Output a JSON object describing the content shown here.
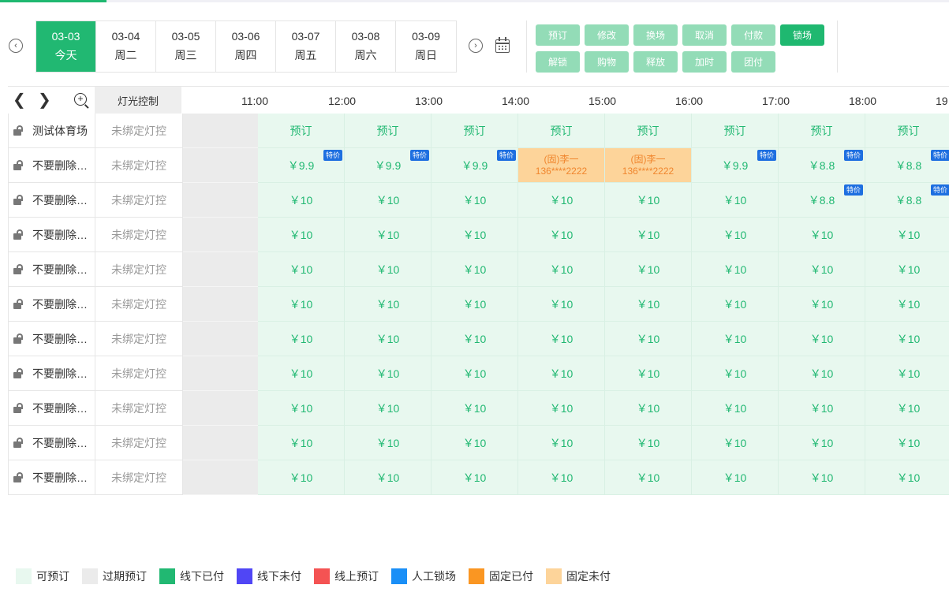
{
  "colors": {
    "primary": "#1fb870",
    "primary_light": "#93dcb7",
    "available": "#e8f8ef",
    "expired": "#ebebeb",
    "fixed_unpaid": "#fdd49a",
    "badge": "#1e6fe0"
  },
  "dates": [
    {
      "date": "03-03",
      "day": "今天",
      "active": true
    },
    {
      "date": "03-04",
      "day": "周二"
    },
    {
      "date": "03-05",
      "day": "周三"
    },
    {
      "date": "03-06",
      "day": "周四"
    },
    {
      "date": "03-07",
      "day": "周五"
    },
    {
      "date": "03-08",
      "day": "周六"
    },
    {
      "date": "03-09",
      "day": "周日"
    }
  ],
  "actions_row1": [
    "预订",
    "修改",
    "换场",
    "取消",
    "付款",
    "锁场"
  ],
  "actions_row2": [
    "解锁",
    "购物",
    "释放",
    "加时",
    "团付"
  ],
  "header": {
    "light_control": "灯光控制",
    "times": [
      "11:00",
      "12:00",
      "13:00",
      "14:00",
      "15:00",
      "16:00",
      "17:00",
      "18:00",
      "19"
    ]
  },
  "rows": [
    {
      "name": "测试体育场",
      "light": "未绑定灯控",
      "slots": [
        {
          "t": "预订"
        },
        {
          "t": "预订"
        },
        {
          "t": "预订"
        },
        {
          "t": "预订"
        },
        {
          "t": "预订"
        },
        {
          "t": "预订"
        },
        {
          "t": "预订"
        },
        {
          "t": "预订"
        }
      ]
    },
    {
      "name": "不要删除…",
      "light": "未绑定灯控",
      "slots": [
        {
          "t": "￥9.9",
          "b": "特价"
        },
        {
          "t": "￥9.9",
          "b": "特价"
        },
        {
          "t": "￥9.9",
          "b": "特价"
        },
        {
          "t": "(固)李一",
          "t2": "136****2222",
          "s": "fixed"
        },
        {
          "t": "(固)李一",
          "t2": "136****2222",
          "s": "fixed"
        },
        {
          "t": "￥9.9",
          "b": "特价"
        },
        {
          "t": "￥8.8",
          "b": "特价"
        },
        {
          "t": "￥8.8",
          "b": "特价"
        }
      ]
    },
    {
      "name": "不要删除…",
      "light": "未绑定灯控",
      "slots": [
        {
          "t": "￥10"
        },
        {
          "t": "￥10"
        },
        {
          "t": "￥10"
        },
        {
          "t": "￥10"
        },
        {
          "t": "￥10"
        },
        {
          "t": "￥10"
        },
        {
          "t": "￥8.8",
          "b": "特价"
        },
        {
          "t": "￥8.8",
          "b": "特价"
        }
      ]
    },
    {
      "name": "不要删除…",
      "light": "未绑定灯控",
      "slots": [
        {
          "t": "￥10"
        },
        {
          "t": "￥10"
        },
        {
          "t": "￥10"
        },
        {
          "t": "￥10"
        },
        {
          "t": "￥10"
        },
        {
          "t": "￥10"
        },
        {
          "t": "￥10"
        },
        {
          "t": "￥10"
        }
      ]
    },
    {
      "name": "不要删除…",
      "light": "未绑定灯控",
      "slots": [
        {
          "t": "￥10"
        },
        {
          "t": "￥10"
        },
        {
          "t": "￥10"
        },
        {
          "t": "￥10"
        },
        {
          "t": "￥10"
        },
        {
          "t": "￥10"
        },
        {
          "t": "￥10"
        },
        {
          "t": "￥10"
        }
      ]
    },
    {
      "name": "不要删除…",
      "light": "未绑定灯控",
      "slots": [
        {
          "t": "￥10"
        },
        {
          "t": "￥10"
        },
        {
          "t": "￥10"
        },
        {
          "t": "￥10"
        },
        {
          "t": "￥10"
        },
        {
          "t": "￥10"
        },
        {
          "t": "￥10"
        },
        {
          "t": "￥10"
        }
      ]
    },
    {
      "name": "不要删除…",
      "light": "未绑定灯控",
      "slots": [
        {
          "t": "￥10"
        },
        {
          "t": "￥10"
        },
        {
          "t": "￥10"
        },
        {
          "t": "￥10"
        },
        {
          "t": "￥10"
        },
        {
          "t": "￥10"
        },
        {
          "t": "￥10"
        },
        {
          "t": "￥10"
        }
      ]
    },
    {
      "name": "不要删除…",
      "light": "未绑定灯控",
      "slots": [
        {
          "t": "￥10"
        },
        {
          "t": "￥10"
        },
        {
          "t": "￥10"
        },
        {
          "t": "￥10"
        },
        {
          "t": "￥10"
        },
        {
          "t": "￥10"
        },
        {
          "t": "￥10"
        },
        {
          "t": "￥10"
        }
      ]
    },
    {
      "name": "不要删除…",
      "light": "未绑定灯控",
      "slots": [
        {
          "t": "￥10"
        },
        {
          "t": "￥10"
        },
        {
          "t": "￥10"
        },
        {
          "t": "￥10"
        },
        {
          "t": "￥10"
        },
        {
          "t": "￥10"
        },
        {
          "t": "￥10"
        },
        {
          "t": "￥10"
        }
      ]
    },
    {
      "name": "不要删除…",
      "light": "未绑定灯控",
      "slots": [
        {
          "t": "￥10"
        },
        {
          "t": "￥10"
        },
        {
          "t": "￥10"
        },
        {
          "t": "￥10"
        },
        {
          "t": "￥10"
        },
        {
          "t": "￥10"
        },
        {
          "t": "￥10"
        },
        {
          "t": "￥10"
        }
      ]
    },
    {
      "name": "不要删除…",
      "light": "未绑定灯控",
      "slots": [
        {
          "t": "￥10"
        },
        {
          "t": "￥10"
        },
        {
          "t": "￥10"
        },
        {
          "t": "￥10"
        },
        {
          "t": "￥10"
        },
        {
          "t": "￥10"
        },
        {
          "t": "￥10"
        },
        {
          "t": "￥10"
        }
      ]
    }
  ],
  "legend": [
    {
      "label": "可预订",
      "color": "#e8f8ef"
    },
    {
      "label": "过期预订",
      "color": "#ebebeb"
    },
    {
      "label": "线下已付",
      "color": "#21b872"
    },
    {
      "label": "线下未付",
      "color": "#5046f5"
    },
    {
      "label": "线上预订",
      "color": "#f45353"
    },
    {
      "label": "人工锁场",
      "color": "#1a8ff7"
    },
    {
      "label": "固定已付",
      "color": "#fa9622"
    },
    {
      "label": "固定未付",
      "color": "#fdd49a"
    }
  ]
}
